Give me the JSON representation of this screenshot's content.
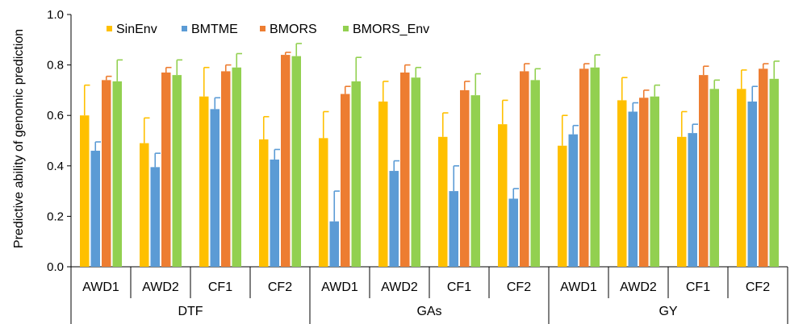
{
  "chart_data": {
    "type": "bar",
    "ylabel": "Predictive ability of genomic prediction",
    "ylim": [
      0,
      1.0
    ],
    "yticks": [
      "0.0",
      "0.2",
      "0.4",
      "0.6",
      "0.8",
      "1.0"
    ],
    "grid": false,
    "legend_position": "top-left",
    "groups": [
      "DTF",
      "GAs",
      "GY"
    ],
    "subcategories": [
      "AWD1",
      "AWD2",
      "CF1",
      "CF2"
    ],
    "categories": [
      "AWD1",
      "AWD2",
      "CF1",
      "CF2",
      "AWD1",
      "AWD2",
      "CF1",
      "CF2",
      "AWD1",
      "AWD2",
      "CF1",
      "CF2"
    ],
    "series": [
      {
        "name": "SinEnv",
        "color": "#FFC000",
        "values": [
          0.6,
          0.49,
          0.675,
          0.505,
          0.51,
          0.655,
          0.515,
          0.565,
          0.48,
          0.66,
          0.515,
          0.705
        ],
        "errors": [
          0.12,
          0.1,
          0.115,
          0.09,
          0.105,
          0.08,
          0.095,
          0.095,
          0.12,
          0.09,
          0.1,
          0.075
        ]
      },
      {
        "name": "BMTME",
        "color": "#5B9BD5",
        "values": [
          0.46,
          0.395,
          0.625,
          0.425,
          0.18,
          0.38,
          0.3,
          0.27,
          0.525,
          0.615,
          0.53,
          0.655
        ],
        "errors": [
          0.035,
          0.055,
          0.045,
          0.04,
          0.12,
          0.04,
          0.1,
          0.04,
          0.035,
          0.035,
          0.035,
          0.06
        ]
      },
      {
        "name": "BMORS",
        "color": "#ED7D31",
        "values": [
          0.74,
          0.77,
          0.775,
          0.84,
          0.685,
          0.77,
          0.7,
          0.775,
          0.785,
          0.67,
          0.76,
          0.785
        ],
        "errors": [
          0.015,
          0.02,
          0.025,
          0.01,
          0.03,
          0.03,
          0.035,
          0.03,
          0.02,
          0.03,
          0.035,
          0.02
        ]
      },
      {
        "name": "BMORS_Env",
        "color": "#92D050",
        "values": [
          0.735,
          0.76,
          0.79,
          0.835,
          0.735,
          0.75,
          0.68,
          0.74,
          0.79,
          0.675,
          0.705,
          0.745
        ],
        "errors": [
          0.085,
          0.06,
          0.055,
          0.05,
          0.095,
          0.04,
          0.085,
          0.045,
          0.05,
          0.045,
          0.035,
          0.07
        ]
      }
    ]
  }
}
